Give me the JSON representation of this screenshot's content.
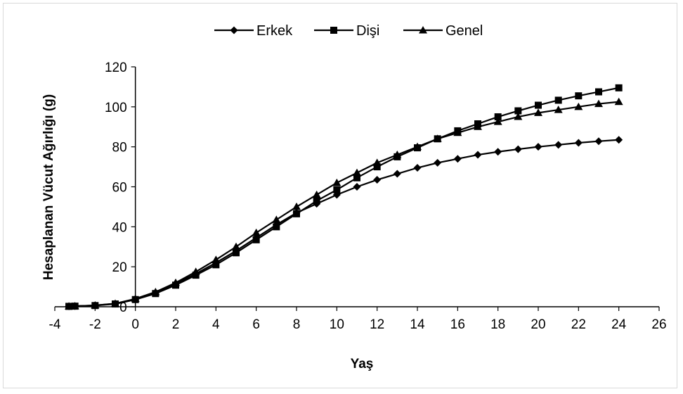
{
  "chart_data": {
    "type": "line",
    "xlabel": "Yaş",
    "ylabel": "Hesaplanan Vücut Ağırlığı (g)",
    "xlim": [
      -4,
      26
    ],
    "ylim": [
      0,
      120
    ],
    "x_ticks": [
      "-4",
      "-2",
      "0",
      "2",
      "4",
      "6",
      "8",
      "10",
      "12",
      "14",
      "16",
      "18",
      "20",
      "22",
      "24",
      "26"
    ],
    "y_ticks": [
      "0",
      "20",
      "40",
      "60",
      "80",
      "100",
      "120"
    ],
    "legend_position": "top",
    "grid": false,
    "x": [
      -3.3,
      -3,
      -2,
      -1,
      0,
      1,
      2,
      3,
      4,
      5,
      6,
      7,
      8,
      9,
      10,
      11,
      12,
      13,
      14,
      15,
      16,
      17,
      18,
      19,
      20,
      21,
      22,
      23,
      24
    ],
    "series": [
      {
        "name": "Erkek",
        "marker": "diamond",
        "color": "#000000",
        "values": [
          0.2,
          0.3,
          0.7,
          1.5,
          3.8,
          7.0,
          11.5,
          16.5,
          22.0,
          28.0,
          34.5,
          41.0,
          47.0,
          51.5,
          56.0,
          60.0,
          63.5,
          66.5,
          69.5,
          72.0,
          74.0,
          76.0,
          77.5,
          78.8,
          80.0,
          81.0,
          82.0,
          82.8,
          83.5
        ]
      },
      {
        "name": "Dişi",
        "marker": "square",
        "color": "#000000",
        "values": [
          0.2,
          0.3,
          0.6,
          1.4,
          3.6,
          6.6,
          10.8,
          15.8,
          21.0,
          27.0,
          33.5,
          40.0,
          46.5,
          53.0,
          58.5,
          64.5,
          70.0,
          75.0,
          79.5,
          84.0,
          88.0,
          91.5,
          95.0,
          98.0,
          100.8,
          103.3,
          105.5,
          107.5,
          109.5
        ]
      },
      {
        "name": "Genel",
        "marker": "triangle",
        "color": "#000000",
        "values": [
          0.2,
          0.3,
          0.7,
          1.6,
          4.0,
          7.4,
          12.0,
          17.5,
          23.5,
          30.0,
          37.0,
          43.5,
          50.0,
          56.0,
          62.0,
          67.0,
          72.0,
          76.0,
          80.0,
          84.0,
          87.0,
          90.0,
          92.5,
          95.0,
          97.0,
          98.5,
          100.0,
          101.5,
          102.5
        ]
      }
    ]
  }
}
